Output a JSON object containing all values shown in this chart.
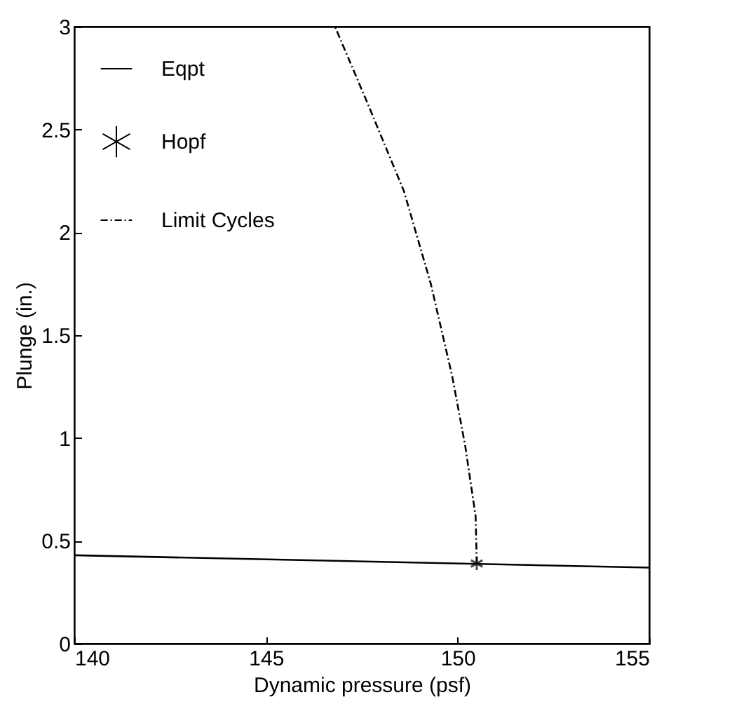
{
  "chart_data": {
    "type": "line",
    "xlabel": "Dynamic pressure (psf)",
    "ylabel": "Plunge (in.)",
    "xlim": [
      140,
      155
    ],
    "xticks": [
      140,
      145,
      150,
      155
    ],
    "ylim": [
      0,
      3
    ],
    "yticks": [
      0,
      0.5,
      1,
      1.5,
      2,
      2.5,
      3
    ],
    "grid": false,
    "legend": "top left",
    "series": [
      {
        "name": "Eqpt",
        "color": "#000000",
        "line_style": "solid",
        "x": [
          140,
          155
        ],
        "values": [
          0.43,
          0.37
        ]
      },
      {
        "name": "Hopf",
        "type": "scatter",
        "color": "#000000",
        "marker": "cross",
        "x": [
          150.5
        ],
        "values": [
          0.39
        ]
      },
      {
        "name": "Limit Cycles",
        "color": "#000000",
        "line_style": "dashdot",
        "x": [
          150.5,
          150.47,
          150.2,
          149.86,
          149.3,
          148.6,
          147.6,
          146.8
        ],
        "values": [
          0.39,
          0.62,
          0.96,
          1.3,
          1.75,
          2.2,
          2.65,
          3
        ]
      }
    ]
  }
}
